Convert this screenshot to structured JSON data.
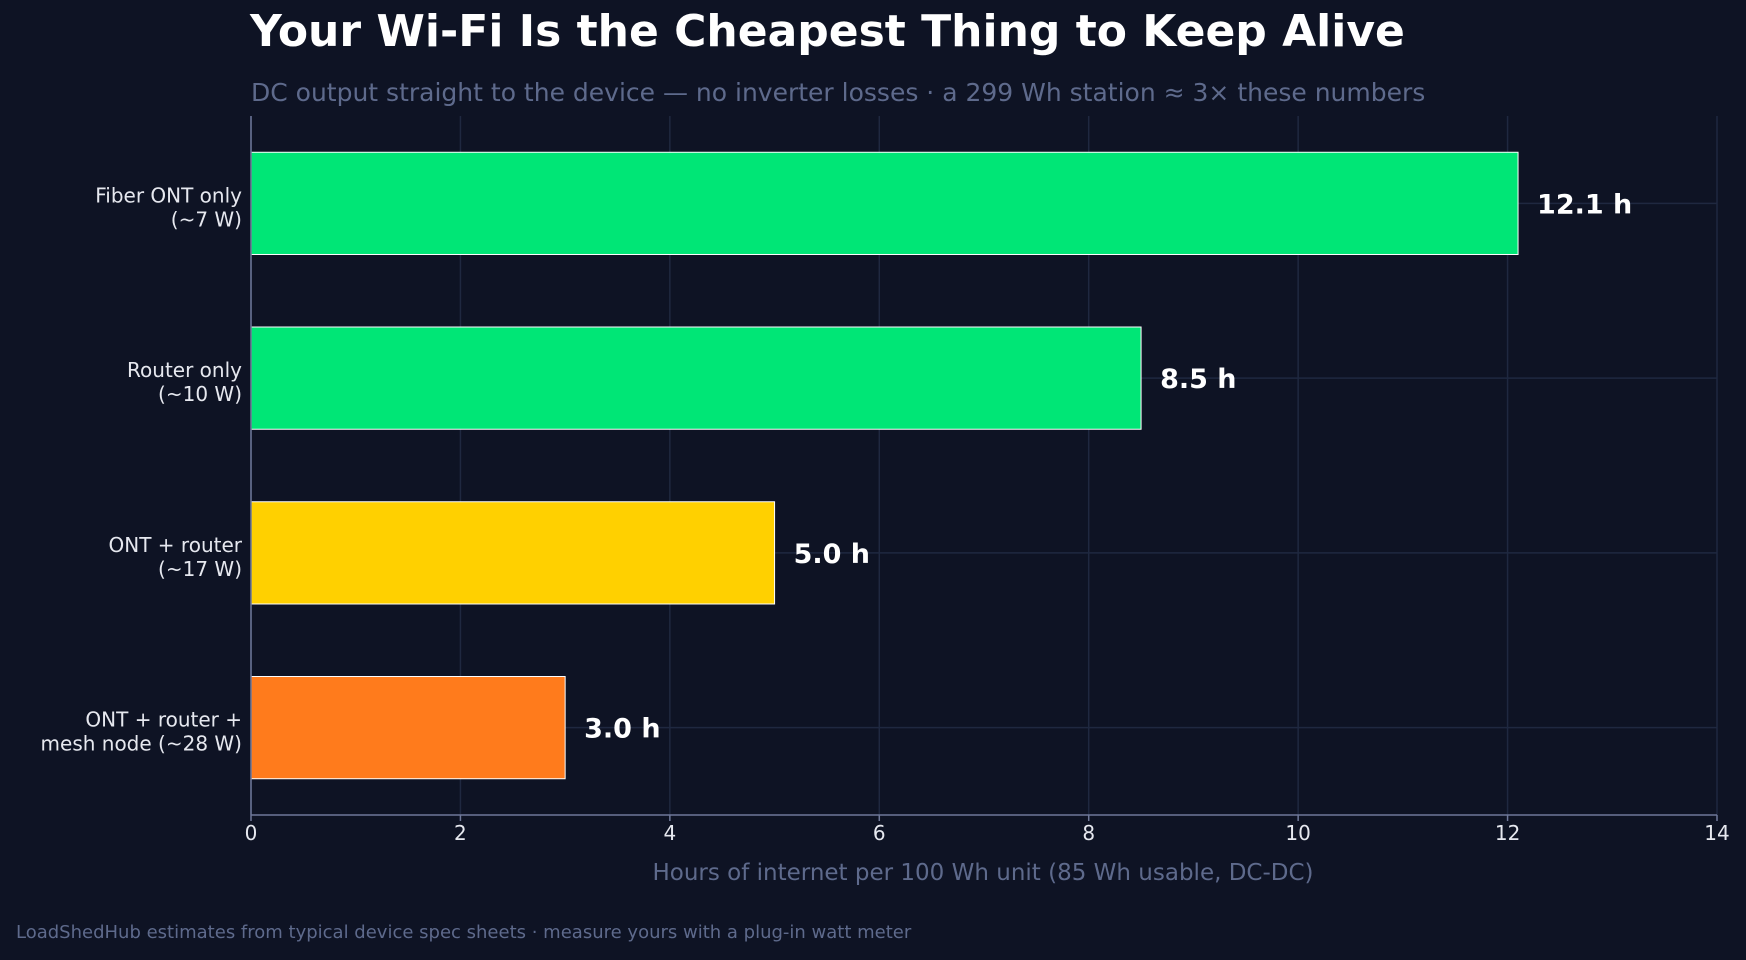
{
  "chart_data": {
    "type": "bar",
    "orientation": "horizontal",
    "title": "Your Wi-Fi Is the Cheapest Thing to Keep Alive",
    "subtitle": "DC output straight to the device — no inverter losses · a 299 Wh station ≈ 3× these numbers",
    "xlabel": "Hours of internet per 100 Wh unit (85 Wh usable, DC-DC)",
    "ylabel": "",
    "footer": "LoadShedHub estimates from typical device spec sheets · measure yours with a plug-in watt meter",
    "xlim": [
      0,
      14
    ],
    "xticks": [
      "0",
      "2",
      "4",
      "6",
      "8",
      "10",
      "12",
      "14"
    ],
    "grid": true,
    "categories": [
      [
        "Fiber ONT only",
        "(~7 W)"
      ],
      [
        "Router only",
        "(~10 W)"
      ],
      [
        "ONT + router",
        "(~17 W)"
      ],
      [
        "ONT + router +",
        "mesh node (~28 W)"
      ]
    ],
    "values": [
      12.1,
      8.5,
      5.0,
      3.0
    ],
    "value_labels": [
      "12.1 h",
      "8.5 h",
      "5.0 h",
      "3.0 h"
    ],
    "bar_colors": [
      "#00e676",
      "#00e676",
      "#ffd000",
      "#ff7b1c"
    ]
  },
  "colors": {
    "background": "#0e1324",
    "grid": "#1f2840",
    "axis": "#6f7899",
    "muted_text": "#5e6a8c",
    "label_text": "#e6e8ef",
    "value_text": "#ffffff"
  }
}
